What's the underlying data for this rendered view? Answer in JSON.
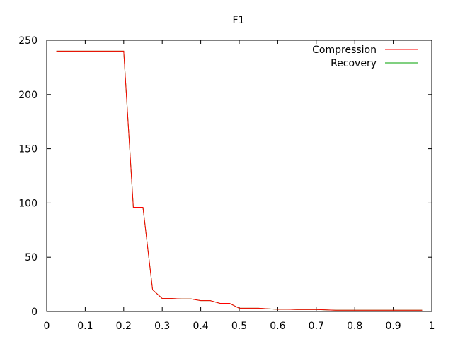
{
  "chart_data": {
    "type": "line",
    "title": "F1",
    "xlabel": "",
    "ylabel": "",
    "xlim": [
      0,
      1
    ],
    "ylim": [
      0,
      250
    ],
    "xticks": [
      0,
      0.1,
      0.2,
      0.3,
      0.4,
      0.5,
      0.6,
      0.7,
      0.8,
      0.9,
      1
    ],
    "xtick_labels": [
      "0",
      "0.1",
      "0.2",
      "0.3",
      "0.4",
      "0.5",
      "0.6",
      "0.7",
      "0.8",
      "0.9",
      "1"
    ],
    "yticks": [
      0,
      50,
      100,
      150,
      200,
      250
    ],
    "ytick_labels": [
      "0",
      "50",
      "100",
      "150",
      "200",
      "250"
    ],
    "grid": false,
    "legend_position": "top-right",
    "series": [
      {
        "name": "Compression",
        "color": "#ff0000",
        "x": [
          0.025,
          0.05,
          0.075,
          0.1,
          0.125,
          0.15,
          0.175,
          0.2,
          0.225,
          0.25,
          0.275,
          0.3,
          0.325,
          0.35,
          0.375,
          0.4,
          0.425,
          0.45,
          0.475,
          0.5,
          0.525,
          0.55,
          0.575,
          0.6,
          0.625,
          0.65,
          0.675,
          0.7,
          0.725,
          0.75,
          0.775,
          0.8,
          0.825,
          0.85,
          0.875,
          0.9,
          0.925,
          0.95,
          0.975
        ],
        "y": [
          240,
          240,
          240,
          240,
          240,
          240,
          240,
          240,
          96,
          96,
          20,
          12,
          12,
          11.5,
          11.5,
          10,
          10,
          7.5,
          7.5,
          3,
          3,
          3,
          2.5,
          2,
          2,
          1.8,
          1.8,
          1.8,
          1.5,
          1.2,
          1.2,
          1.2,
          1.2,
          1.2,
          1.2,
          1.2,
          1.2,
          1.2,
          1.2
        ]
      },
      {
        "name": "Recovery",
        "color": "#00a000",
        "x": [
          0.025,
          0.05,
          0.075,
          0.1,
          0.125,
          0.15,
          0.175,
          0.2,
          0.225,
          0.25,
          0.275,
          0.3,
          0.325,
          0.35,
          0.375,
          0.4,
          0.425,
          0.45,
          0.475,
          0.5,
          0.525,
          0.55,
          0.575,
          0.6,
          0.625,
          0.65,
          0.675,
          0.7,
          0.725,
          0.75,
          0.775,
          0.8,
          0.825,
          0.85,
          0.875,
          0.9,
          0.925,
          0.95,
          0.975
        ],
        "y": [
          240,
          240,
          240,
          240,
          240,
          240,
          240,
          240,
          96,
          96,
          20,
          12,
          12,
          11.5,
          11.5,
          10,
          10,
          7.5,
          7.5,
          3,
          3,
          3,
          2.5,
          2,
          2,
          1.8,
          1.8,
          1.8,
          1.5,
          1.2,
          1.2,
          1.2,
          1.2,
          1.2,
          1.2,
          1.2,
          1.2,
          1.2,
          1.2
        ]
      }
    ]
  }
}
